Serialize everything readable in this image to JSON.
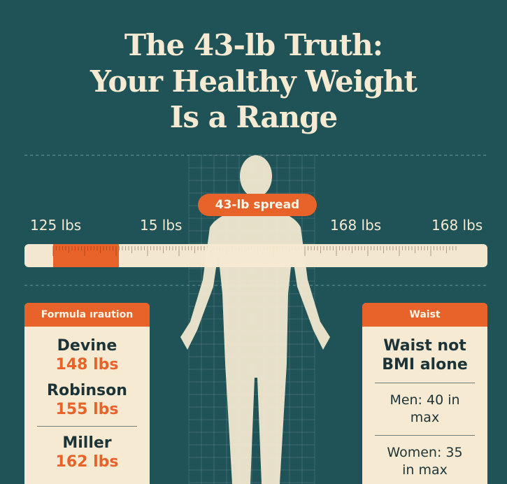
{
  "title": {
    "lines": [
      "The 43-lb Truth:",
      "Your Healthy Weight",
      "Is a Range"
    ]
  },
  "badge": "43-lb spread",
  "ruler": {
    "labels": [
      "125 lbs",
      "15 lbs",
      "168 lbs",
      "168 lbs"
    ]
  },
  "formula_card": {
    "header": "Formula ıraution",
    "items": [
      {
        "name": "Devine",
        "value": "148 lbs"
      },
      {
        "name": "Robinson",
        "value": "155 lbs"
      },
      {
        "name": "Miller",
        "value": "162 lbs"
      }
    ]
  },
  "waist_card": {
    "header": "Waist",
    "headline": "Waist not BMI alone",
    "notes": [
      "Men: 40 in max",
      "Women: 35 in max"
    ]
  }
}
